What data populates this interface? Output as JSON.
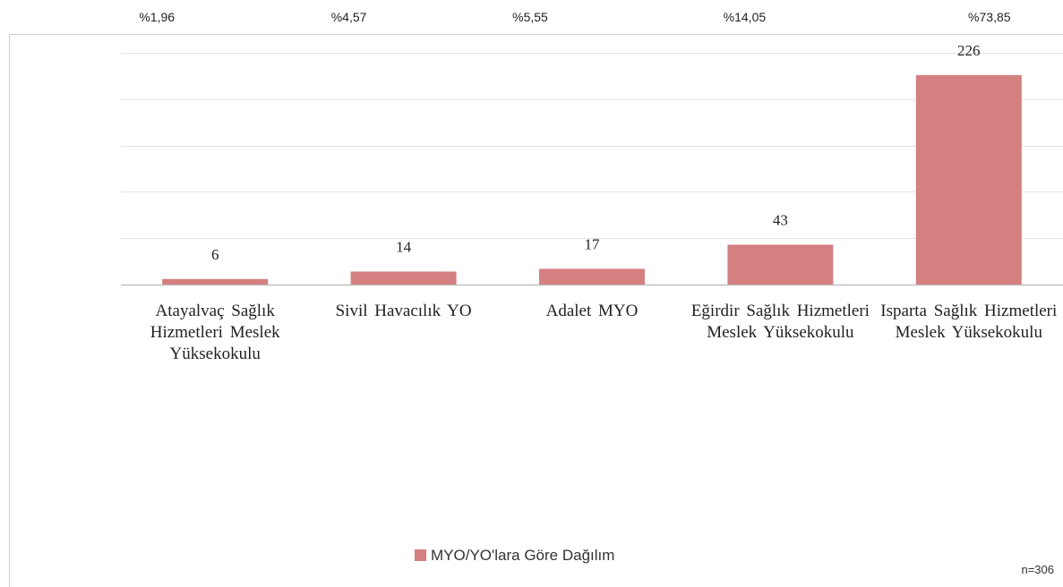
{
  "chart_data": {
    "type": "bar",
    "categories": [
      "Atayalvaç Sağlık Hizmetleri Meslek Yüksekokulu",
      "Sivil Havacılık YO",
      "Adalet MYO",
      "Eğirdir Sağlık Hizmetleri Meslek Yüksekokulu",
      "Isparta Sağlık Hizmetleri Meslek Yüksekokulu"
    ],
    "top_labels": [
      "%1,96",
      "%4,57",
      "%5,55",
      "%14,05",
      "%73,85"
    ],
    "series": [
      {
        "name": "MYO/YO'lara Göre Dağılım",
        "color": "#d48080",
        "values": [
          6,
          14,
          17,
          43,
          226
        ]
      }
    ],
    "ylim": [
      0,
      250
    ],
    "yticks": [
      0,
      50,
      100,
      150,
      200,
      250
    ],
    "grid": true,
    "legend": "bottom",
    "note": "n=306"
  }
}
